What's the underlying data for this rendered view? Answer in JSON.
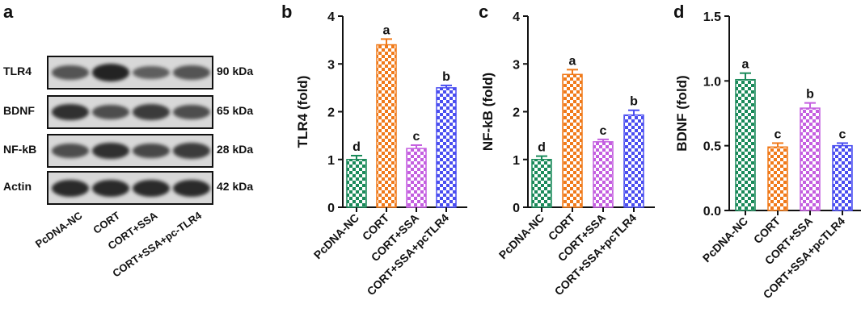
{
  "panel_letters": [
    "a",
    "b",
    "c",
    "d"
  ],
  "western_blot": {
    "rows": [
      {
        "protein": "TLR4",
        "kda": "90 kDa",
        "intensities": [
          0.55,
          0.95,
          0.45,
          0.55
        ]
      },
      {
        "protein": "BDNF",
        "kda": "65 kDa",
        "intensities": [
          0.85,
          0.6,
          0.75,
          0.6
        ]
      },
      {
        "protein": "NF-kB",
        "kda": "28 kDa",
        "intensities": [
          0.6,
          0.85,
          0.65,
          0.75
        ]
      },
      {
        "protein": "Actin",
        "kda": "42 kDa",
        "intensities": [
          0.9,
          0.9,
          0.9,
          0.9
        ]
      }
    ],
    "lanes": [
      "PcDNA-NC",
      "CORT",
      "CORT+SSA",
      "CORT+SSA+pc-TLR4"
    ]
  },
  "colors": {
    "green": "#1a8a5a",
    "orange": "#f07a1a",
    "purple": "#c45ee0",
    "blue": "#4a4ef0"
  },
  "chart_data": [
    {
      "type": "bar",
      "ylabel": "TLR4 (fold)",
      "categories": [
        "PcDNA-NC",
        "CORT",
        "CORT+SSA",
        "CORT+SSA+pcTLR4"
      ],
      "values": [
        1.0,
        3.4,
        1.23,
        2.5
      ],
      "errors": [
        0.08,
        0.12,
        0.07,
        0.05
      ],
      "letters": [
        "d",
        "a",
        "c",
        "b"
      ],
      "ylim": [
        0,
        4
      ],
      "yticks": [
        "0",
        "1",
        "2",
        "3",
        "4"
      ]
    },
    {
      "type": "bar",
      "ylabel": "NF-kB (fold)",
      "categories": [
        "PcDNA-NC",
        "CORT",
        "CORT+SSA",
        "CORT+SSA+pcTLR4"
      ],
      "values": [
        1.0,
        2.78,
        1.37,
        1.93
      ],
      "errors": [
        0.07,
        0.1,
        0.05,
        0.1
      ],
      "letters": [
        "d",
        "a",
        "c",
        "b"
      ],
      "ylim": [
        0,
        4
      ],
      "yticks": [
        "0",
        "1",
        "2",
        "3",
        "4"
      ]
    },
    {
      "type": "bar",
      "ylabel": "BDNF (fold)",
      "categories": [
        "PcDNA-NC",
        "CORT",
        "CORT+SSA",
        "CORT+SSA+pcTLR4"
      ],
      "values": [
        1.01,
        0.49,
        0.79,
        0.5
      ],
      "errors": [
        0.05,
        0.03,
        0.04,
        0.02
      ],
      "letters": [
        "a",
        "c",
        "b",
        "c"
      ],
      "ylim": [
        0,
        1.5
      ],
      "yticks": [
        "0.0",
        "0.5",
        "1.0",
        "1.5"
      ]
    }
  ]
}
